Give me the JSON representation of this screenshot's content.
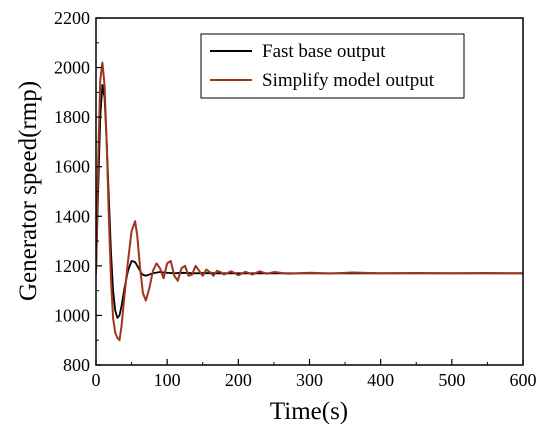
{
  "chart_data": {
    "type": "line",
    "title": "",
    "xlabel": "Time(s)",
    "ylabel": "Generator speed(rmp)",
    "xlim": [
      0,
      600
    ],
    "ylim": [
      800,
      2200
    ],
    "xticks": [
      0,
      100,
      200,
      300,
      400,
      500,
      600
    ],
    "yticks": [
      800,
      1000,
      1200,
      1400,
      1600,
      1800,
      2000,
      2200
    ],
    "grid": false,
    "legend_position": "top-right",
    "series": [
      {
        "name": "Fast base output",
        "color": "#000000",
        "x": [
          0,
          3,
          6,
          9,
          12,
          15,
          18,
          21,
          24,
          27,
          30,
          33,
          36,
          40,
          45,
          50,
          55,
          60,
          65,
          70,
          75,
          80,
          90,
          100,
          110,
          120,
          130,
          140,
          150,
          170,
          200,
          250,
          300,
          400,
          500,
          600
        ],
        "y": [
          1170,
          1500,
          1800,
          1930,
          1880,
          1700,
          1480,
          1260,
          1100,
          1020,
          990,
          1000,
          1040,
          1110,
          1180,
          1220,
          1215,
          1190,
          1165,
          1160,
          1165,
          1170,
          1175,
          1172,
          1170,
          1172,
          1171,
          1170,
          1171,
          1170,
          1170,
          1170,
          1170,
          1170,
          1170,
          1170
        ]
      },
      {
        "name": "Simplify model output",
        "color": "#a0341e",
        "x": [
          0,
          3,
          6,
          9,
          12,
          15,
          18,
          21,
          24,
          27,
          30,
          33,
          36,
          40,
          45,
          50,
          55,
          58,
          62,
          66,
          70,
          75,
          80,
          85,
          90,
          95,
          100,
          105,
          110,
          115,
          120,
          125,
          130,
          135,
          140,
          145,
          150,
          155,
          160,
          165,
          170,
          175,
          180,
          190,
          200,
          210,
          220,
          230,
          240,
          250,
          270,
          300,
          330,
          360,
          400,
          450,
          500,
          550,
          600
        ],
        "y": [
          1170,
          1620,
          1950,
          2020,
          1930,
          1700,
          1400,
          1150,
          990,
          930,
          910,
          900,
          960,
          1080,
          1220,
          1340,
          1380,
          1320,
          1190,
          1090,
          1060,
          1110,
          1180,
          1210,
          1190,
          1150,
          1210,
          1220,
          1160,
          1140,
          1190,
          1200,
          1160,
          1165,
          1200,
          1180,
          1160,
          1185,
          1175,
          1160,
          1180,
          1175,
          1165,
          1178,
          1162,
          1176,
          1165,
          1178,
          1168,
          1175,
          1168,
          1172,
          1169,
          1173,
          1170,
          1171,
          1170,
          1171,
          1170
        ]
      }
    ]
  }
}
